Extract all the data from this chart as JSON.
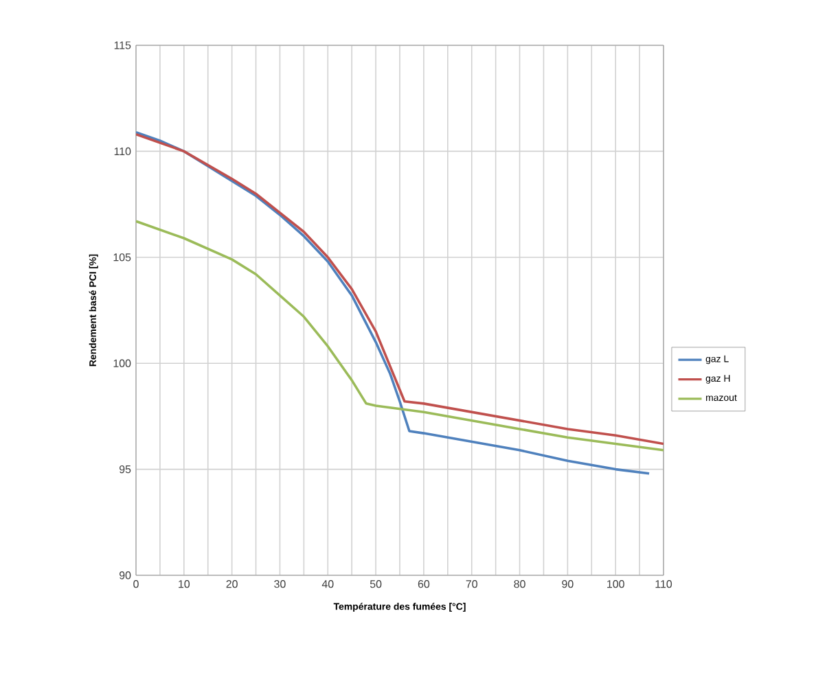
{
  "chart_data": {
    "type": "line",
    "xlabel": "Température des fumées [°C]",
    "ylabel": "Rendement basé PCI [%]",
    "xlim": [
      0,
      110
    ],
    "ylim": [
      90,
      115
    ],
    "xticks": [
      0,
      {
        "value": 5,
        "label": null
      },
      10,
      {
        "value": 15,
        "label": null
      },
      20,
      {
        "value": 25,
        "label": null
      },
      30,
      {
        "value": 35,
        "label": null
      },
      40,
      {
        "value": 45,
        "label": null
      },
      50,
      {
        "value": 55,
        "label": null
      },
      60,
      {
        "value": 65,
        "label": null
      },
      70,
      {
        "value": 75,
        "label": null
      },
      80,
      {
        "value": 85,
        "label": null
      },
      90,
      {
        "value": 95,
        "label": null
      },
      100,
      {
        "value": 105,
        "label": null
      },
      110
    ],
    "yticks": [
      90,
      95,
      100,
      105,
      110,
      115
    ],
    "grid": true,
    "legend": "right",
    "marker": "none",
    "line_style": "solid",
    "series": [
      {
        "name": "gaz L",
        "color": "#4f81bd",
        "x": [
          0,
          5,
          10,
          15,
          20,
          25,
          30,
          35,
          40,
          45,
          50,
          53,
          55,
          57,
          60,
          70,
          80,
          90,
          100,
          107
        ],
        "values": [
          110.9,
          110.5,
          110.0,
          109.3,
          108.6,
          107.9,
          107.0,
          106.0,
          104.8,
          103.2,
          101.0,
          99.5,
          98.2,
          96.8,
          96.7,
          96.3,
          95.9,
          95.4,
          95.0,
          94.8
        ]
      },
      {
        "name": "gaz H",
        "color": "#c0504d",
        "x": [
          0,
          10,
          20,
          25,
          30,
          35,
          40,
          45,
          50,
          56,
          60,
          70,
          80,
          90,
          100,
          110
        ],
        "values": [
          110.8,
          110.0,
          108.7,
          108.0,
          107.1,
          106.2,
          105.0,
          103.5,
          101.5,
          98.2,
          98.1,
          97.7,
          97.3,
          96.9,
          96.6,
          96.2
        ]
      },
      {
        "name": "mazout",
        "color": "#9bbb59",
        "x": [
          0,
          10,
          20,
          25,
          30,
          35,
          40,
          45,
          48,
          50,
          60,
          70,
          80,
          90,
          100,
          110
        ],
        "values": [
          106.7,
          105.9,
          104.9,
          104.2,
          103.2,
          102.2,
          100.8,
          99.2,
          98.1,
          98.0,
          97.7,
          97.3,
          96.9,
          96.5,
          96.2,
          95.9
        ]
      }
    ]
  }
}
